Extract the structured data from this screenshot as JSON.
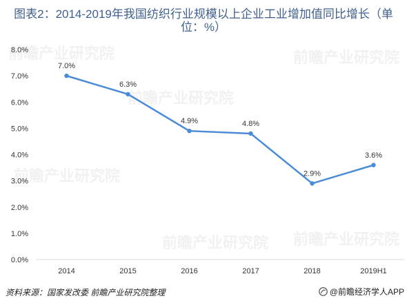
{
  "chart_data": {
    "type": "line",
    "title": "图表2：2014-2019年我国纺织行业规模以上企业工业增加值同比增长（单位：%）",
    "categories": [
      "2014",
      "2015",
      "2016",
      "2017",
      "2018",
      "2019H1"
    ],
    "values": [
      7.0,
      6.3,
      4.9,
      4.8,
      2.9,
      3.6
    ],
    "data_labels": [
      "7.0%",
      "6.3%",
      "4.9%",
      "4.8%",
      "2.9%",
      "3.6%"
    ],
    "y_tick_labels": [
      "0.0%",
      "1.0%",
      "2.0%",
      "3.0%",
      "4.0%",
      "5.0%",
      "6.0%",
      "7.0%",
      "8.0%"
    ],
    "ylim": [
      0,
      8
    ],
    "y_step": 1,
    "grid": false,
    "legend": "none",
    "colors": {
      "line": "#4a8bd8",
      "title": "#3f5f8f"
    }
  },
  "footer": {
    "source": "资料来源：国家发改委 前瞻产业研究院整理",
    "brand": "@前瞻经济学人APP",
    "brand_icon": "qianzhan-logo-icon"
  },
  "watermark": "前瞻产业研究院"
}
